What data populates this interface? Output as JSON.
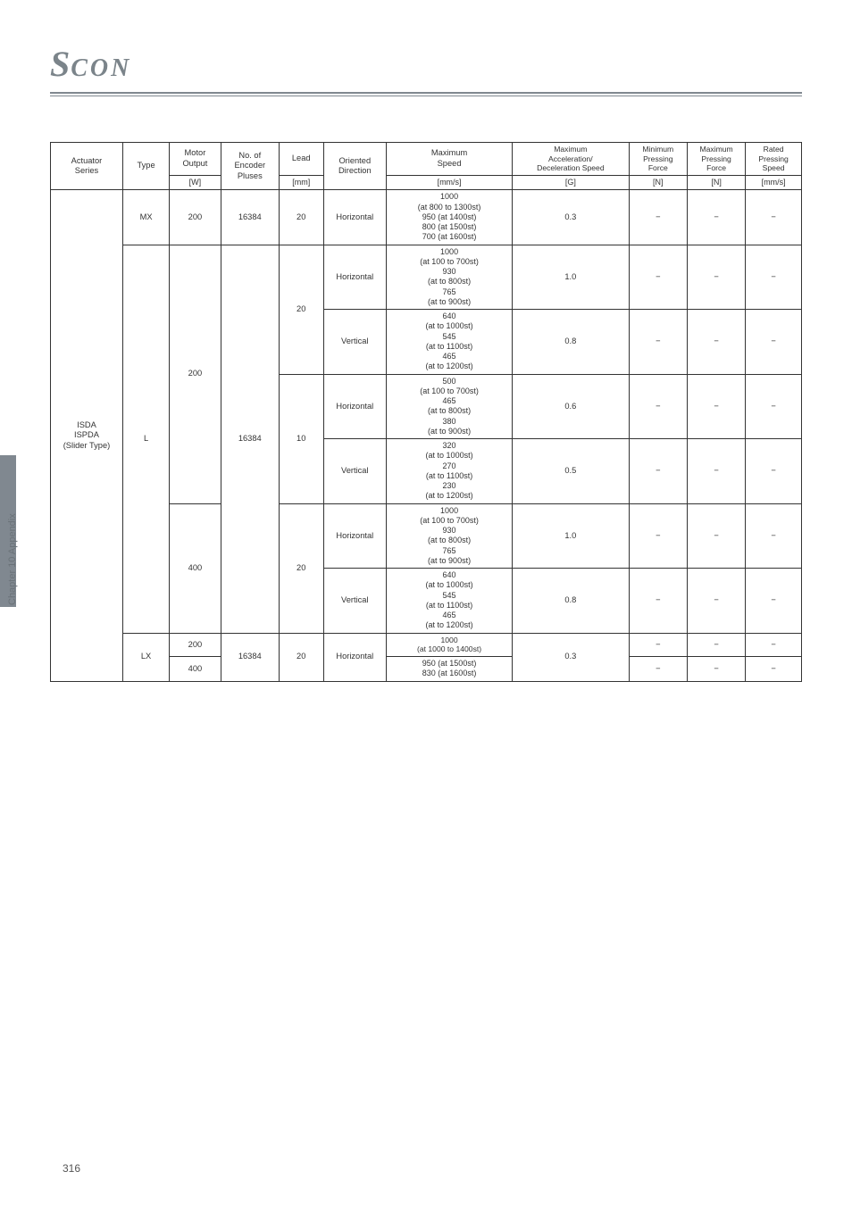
{
  "logo_text": "SCON",
  "sidebar_label": "Chapter 10 Appendix",
  "page_number": "316",
  "table": {
    "headers": {
      "actuator": "Actuator\nSeries",
      "type": "Type",
      "motor": "Motor\nOutput",
      "encoder": "No. of\nEncoder\nPluses",
      "lead": "Lead",
      "direction": "Oriented\nDirection",
      "maxspeed": "Maximum\nSpeed",
      "maxaccel": "Maximum\nAcceleration/\nDeceleration Speed",
      "minpress": "Minimum\nPressing\nForce",
      "maxpress": "Maximum\nPressing\nForce",
      "rated": "Rated\nPressing\nSpeed"
    },
    "units": {
      "motor": "[W]",
      "lead": "[mm]",
      "maxspeed": "[mm/s]",
      "maxaccel": "[G]",
      "minpress": "[N]",
      "maxpress": "[N]",
      "rated": "[mm/s]"
    },
    "actuator_series": "ISDA\nISPDA\n(Slider Type)",
    "rows": [
      {
        "type": "MX",
        "motor": "200",
        "encoder": "16384",
        "lead": "20",
        "dir": "Horizontal",
        "speed": "1000\n(at 800 to 1300st)\n950 (at 1400st)\n800 (at 1500st)\n700 (at 1600st)",
        "accel": "0.3",
        "min": "−",
        "max": "−",
        "rated": "−"
      },
      {
        "type": "L",
        "motor": "200",
        "encoder": "16384",
        "lead": "20",
        "dir": "Horizontal",
        "speed": "1000\n(at 100 to 700st)\n930\n(at to 800st)\n765\n(at to 900st)",
        "accel": "1.0",
        "min": "−",
        "max": "−",
        "rated": "−"
      },
      {
        "dir": "Vertical",
        "speed": "640\n(at to 1000st)\n545\n(at to 1100st)\n465\n(at to 1200st)",
        "accel": "0.8",
        "min": "−",
        "max": "−",
        "rated": "−"
      },
      {
        "lead": "10",
        "dir": "Horizontal",
        "speed": "500\n(at 100 to 700st)\n465\n(at to 800st)\n380\n(at to 900st)",
        "accel": "0.6",
        "min": "−",
        "max": "−",
        "rated": "−"
      },
      {
        "dir": "Vertical",
        "speed": "320\n(at to 1000st)\n270\n(at to 1100st)\n230\n(at to 1200st)",
        "accel": "0.5",
        "min": "−",
        "max": "−",
        "rated": "−"
      },
      {
        "motor": "400",
        "lead": "20",
        "dir": "Horizontal",
        "speed": "1000\n(at 100 to 700st)\n930\n(at to 800st)\n765\n(at to 900st)",
        "accel": "1.0",
        "min": "−",
        "max": "−",
        "rated": "−"
      },
      {
        "dir": "Vertical",
        "speed": "640\n(at to 1000st)\n545\n(at to 1100st)\n465\n(at to 1200st)",
        "accel": "0.8",
        "min": "−",
        "max": "−",
        "rated": "−"
      },
      {
        "type": "LX",
        "motor": "200",
        "encoder": "16384",
        "lead": "20",
        "dir": "Horizontal",
        "speed": "1000\n(at 1000 to 1400st)",
        "accel": "0.3",
        "min": "−",
        "max": "−",
        "rated": "−"
      },
      {
        "motor": "400",
        "speed": "950 (at 1500st)\n830 (at 1600st)",
        "min": "−",
        "max": "−",
        "rated": "−"
      }
    ]
  }
}
